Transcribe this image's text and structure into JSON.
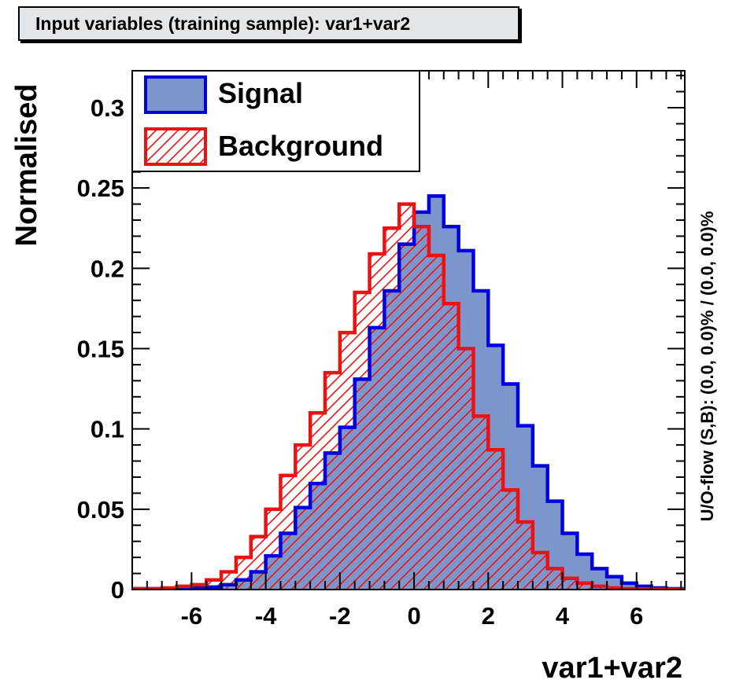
{
  "title": "Input variables (training sample): var1+var2",
  "chart_data": {
    "type": "histogram",
    "xlabel": "var1+var2",
    "ylabel": "Normalised",
    "right_label": "U/O-flow (S,B): (0.0, 0.0)% / (0.0, 0.0)%",
    "xlim": [
      -7.6,
      7.3
    ],
    "ylim": [
      0,
      0.323
    ],
    "x_ticks": [
      -6,
      -4,
      -2,
      0,
      2,
      4,
      6
    ],
    "x_tick_labels": [
      "-6",
      "-4",
      "-2",
      "0",
      "2",
      "4",
      "6"
    ],
    "y_ticks": [
      0,
      0.05,
      0.1,
      0.15,
      0.2,
      0.25,
      0.3
    ],
    "y_tick_labels": [
      "0",
      "0.05",
      "0.1",
      "0.15",
      "0.2",
      "0.25",
      "0.3"
    ],
    "legend_position": "top-left",
    "bin_edges": [
      -7.6,
      -7.2,
      -6.8,
      -6.4,
      -6.0,
      -5.6,
      -5.2,
      -4.8,
      -4.4,
      -4.0,
      -3.6,
      -3.2,
      -2.8,
      -2.4,
      -2.0,
      -1.6,
      -1.2,
      -0.8,
      -0.4,
      0.0,
      0.4,
      0.8,
      1.2,
      1.6,
      2.0,
      2.4,
      2.8,
      3.2,
      3.6,
      4.0,
      4.4,
      4.8,
      5.2,
      5.6,
      6.0,
      6.4,
      6.8,
      7.3
    ],
    "series": [
      {
        "name": "Signal",
        "color": "#0000dd",
        "fill": "#7c96cc",
        "style": "filled",
        "values": [
          0.0005,
          0.0005,
          0.0005,
          0.0008,
          0.001,
          0.0015,
          0.003,
          0.006,
          0.011,
          0.021,
          0.035,
          0.051,
          0.066,
          0.085,
          0.101,
          0.131,
          0.163,
          0.186,
          0.215,
          0.235,
          0.245,
          0.226,
          0.211,
          0.186,
          0.152,
          0.128,
          0.102,
          0.077,
          0.055,
          0.035,
          0.022,
          0.013,
          0.008,
          0.004,
          0.002,
          0.001,
          0.0005
        ]
      },
      {
        "name": "Background",
        "color": "#ee1111",
        "fill": "none",
        "style": "hatched",
        "values": [
          0.0005,
          0.0005,
          0.001,
          0.002,
          0.003,
          0.006,
          0.011,
          0.02,
          0.033,
          0.05,
          0.071,
          0.09,
          0.11,
          0.135,
          0.16,
          0.185,
          0.209,
          0.225,
          0.24,
          0.226,
          0.208,
          0.178,
          0.15,
          0.108,
          0.087,
          0.062,
          0.042,
          0.023,
          0.013,
          0.007,
          0.004,
          0.002,
          0.001,
          0.0005,
          0.0003,
          0.0002,
          0.0001
        ]
      }
    ]
  }
}
